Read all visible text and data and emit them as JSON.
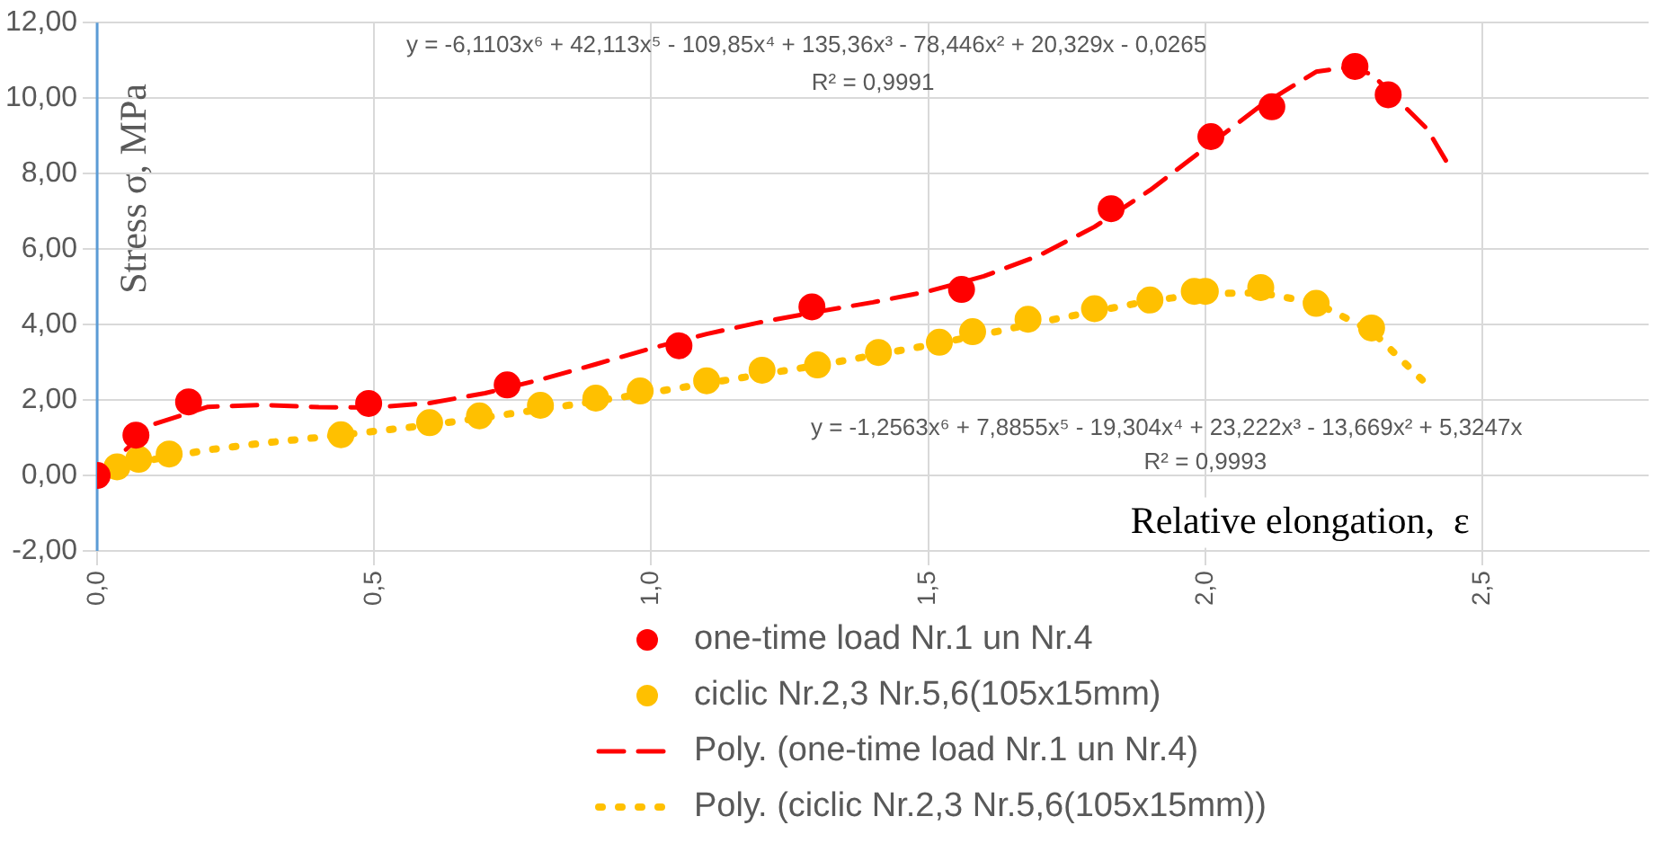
{
  "chart_data": {
    "type": "scatter",
    "xlabel": "Relative elongation,  ε",
    "ylabel": "Stress σ, MPa",
    "xlim": [
      0,
      2.8
    ],
    "xticks": [
      {
        "value": 0,
        "label": "0,0"
      },
      {
        "value": 0.5,
        "label": "0,5"
      },
      {
        "value": 1,
        "label": "1,0"
      },
      {
        "value": 1.5,
        "label": "1,5"
      },
      {
        "value": 2,
        "label": "2,0"
      },
      {
        "value": 2.5,
        "label": "2,5"
      }
    ],
    "ylim": [
      -2,
      12
    ],
    "yticks": [
      {
        "value": -2,
        "label": "-2,00"
      },
      {
        "value": 0,
        "label": "0,00"
      },
      {
        "value": 2,
        "label": "2,00"
      },
      {
        "value": 4,
        "label": "4,00"
      },
      {
        "value": 6,
        "label": "6,00"
      },
      {
        "value": 8,
        "label": "8,00"
      },
      {
        "value": 10,
        "label": "10,00"
      },
      {
        "value": 12,
        "label": "12,00"
      }
    ],
    "grid": true,
    "legend": "bottom",
    "series": [
      {
        "name": "one-time load Nr.1 un Nr.4",
        "type": "scatter",
        "marker": "circle",
        "color": "#ff0000",
        "x": [
          0,
          0.07,
          0.165,
          0.49,
          0.74,
          1.05,
          1.29,
          1.56,
          1.83,
          2.01,
          2.12,
          2.27,
          2.33
        ],
        "values": [
          0,
          1.07,
          1.95,
          1.91,
          2.4,
          3.44,
          4.47,
          4.93,
          7.07,
          8.98,
          9.77,
          10.84,
          10.09
        ]
      },
      {
        "name": "ciclic Nr.2,3 Nr.5,6(105x15mm)",
        "type": "scatter",
        "marker": "circle",
        "color": "#ffc000",
        "x": [
          0.036,
          0.075,
          0.13,
          0.44,
          0.6,
          0.69,
          0.8,
          0.9,
          0.98,
          1.1,
          1.2,
          1.3,
          1.41,
          1.52,
          1.58,
          1.68,
          1.8,
          1.9,
          1.98,
          2.0,
          2.1,
          2.2,
          2.3
        ],
        "values": [
          0.23,
          0.43,
          0.57,
          1.08,
          1.4,
          1.58,
          1.86,
          2.05,
          2.24,
          2.51,
          2.79,
          2.93,
          3.26,
          3.53,
          3.81,
          4.14,
          4.42,
          4.65,
          4.88,
          4.88,
          4.98,
          4.56,
          3.91
        ]
      },
      {
        "name": "Poly. (one-time load Nr.1 un Nr.4)",
        "type": "line",
        "marker": "none",
        "line_style": "dashed",
        "color": "#ff0000",
        "x": [
          0,
          0.1,
          0.2,
          0.3,
          0.4,
          0.5,
          0.6,
          0.7,
          0.8,
          0.9,
          1.0,
          1.1,
          1.2,
          1.3,
          1.4,
          1.5,
          1.6,
          1.7,
          1.8,
          1.9,
          2.0,
          2.1,
          2.2,
          2.25,
          2.3,
          2.4,
          2.44
        ],
        "values": [
          -0.03,
          1.35,
          1.82,
          1.87,
          1.81,
          1.8,
          1.92,
          2.18,
          2.54,
          2.95,
          3.37,
          3.75,
          4.07,
          4.34,
          4.59,
          4.88,
          5.28,
          5.83,
          6.59,
          7.56,
          8.68,
          9.8,
          10.7,
          10.8,
          10.64,
          9.19,
          8.2
        ]
      },
      {
        "name": "Poly. (ciclic Nr.2,3 Nr.5,6(105x15mm))",
        "type": "line",
        "marker": "none",
        "line_style": "dotted",
        "color": "#ffc000",
        "x": [
          0,
          0.1,
          0.2,
          0.3,
          0.4,
          0.5,
          0.6,
          0.7,
          0.8,
          0.9,
          1.0,
          1.1,
          1.2,
          1.3,
          1.4,
          1.5,
          1.6,
          1.7,
          1.8,
          1.9,
          2.0,
          2.1,
          2.2,
          2.3,
          2.4
        ],
        "values": [
          0,
          0.42,
          0.68,
          0.86,
          1.01,
          1.17,
          1.34,
          1.54,
          1.75,
          1.97,
          2.2,
          2.44,
          2.68,
          2.92,
          3.18,
          3.45,
          3.74,
          4.06,
          4.35,
          4.63,
          4.82,
          4.84,
          4.57,
          3.83,
          2.41
        ]
      }
    ],
    "annotations": [
      "y = -6,1103x⁶ + 42,113x⁵ - 109,85x⁴ + 135,36x³ - 78,446x² + 20,329x - 0,0265",
      "R² = 0,9991",
      "y = -1,2563x⁶ + 7,8855x⁵ - 19,304x⁴ + 23,222x³ - 13,669x² + 5,3247x",
      "R² = 0,9993"
    ]
  }
}
